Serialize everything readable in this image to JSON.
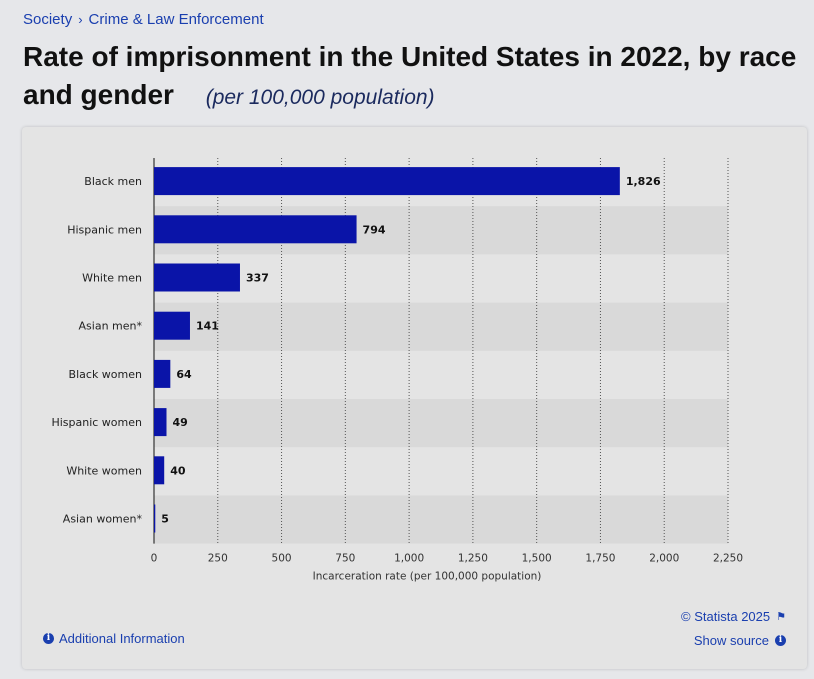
{
  "breadcrumb": {
    "items": [
      "Society",
      "Crime & Law Enforcement"
    ],
    "separator": "›"
  },
  "header": {
    "title": "Rate of imprisonment in the United States in 2022, by race and gender",
    "subtitle": "(per 100,000 population)"
  },
  "footer": {
    "additional_info": "Additional Information",
    "copyright": "© Statista 2025",
    "show_source": "Show source",
    "link_color": "#1a3faf"
  },
  "chart_data": {
    "type": "bar",
    "orientation": "horizontal",
    "categories": [
      "Black men",
      "Hispanic men",
      "White men",
      "Asian men*",
      "Black women",
      "Hispanic women",
      "White women",
      "Asian women*"
    ],
    "values": [
      1826,
      794,
      337,
      141,
      64,
      49,
      40,
      5
    ],
    "value_labels": [
      "1,826",
      "794",
      "337",
      "141",
      "64",
      "49",
      "40",
      "5"
    ],
    "xlabel": "Incarceration rate (per 100,000 population)",
    "xlim": [
      0,
      2250
    ],
    "xticks": [
      0,
      250,
      500,
      750,
      1000,
      1250,
      1500,
      1750,
      2000,
      2250
    ],
    "xtick_labels": [
      "0",
      "250",
      "500",
      "750",
      "1,000",
      "1,250",
      "1,500",
      "1,750",
      "2,000",
      "2,250"
    ],
    "grid": true,
    "bar_color": "#0a14a8"
  }
}
